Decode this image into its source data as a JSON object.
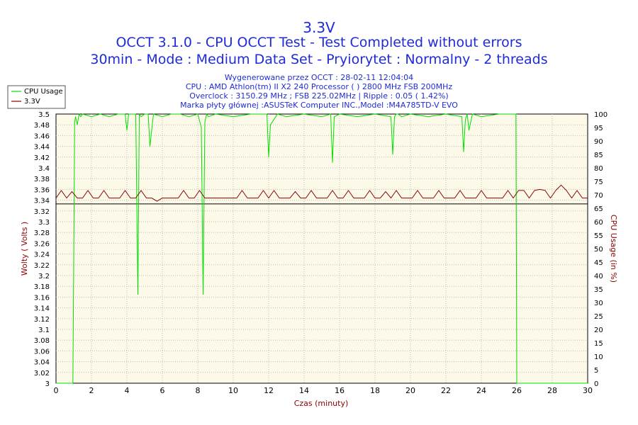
{
  "chart_data": {
    "type": "line",
    "title": "3.3V",
    "subtitle": [
      "OCCT 3.1.0 - CPU OCCT Test - Test Completed without errors",
      "30min - Mode : Medium Data Set - Pryiorytet : Normalny - 2 threads"
    ],
    "info_lines": [
      "Wygenerowane przez OCCT : 28-02-11 12:04:04",
      "CPU : AMD Athlon(tm) II X2 240 Processor (  ) 2800 MHz FSB 200MHz",
      "Overclock : 3150.29 MHz ; FSB 225.02MHz | Ripple : 0.05 ( 1.42%)",
      "Marka płyty głównej :ASUSTeK Computer INC.,Model :M4A785TD-V EVO"
    ],
    "xlabel": "Czas (minuty)",
    "ylabel": "Wolty ( Volts )",
    "y2label": "CPU Usage (in %)",
    "xlim": [
      0,
      30
    ],
    "ylim": [
      3.0,
      3.5
    ],
    "y2lim": [
      0,
      100
    ],
    "x_ticks": [
      "0",
      "2",
      "4",
      "6",
      "8",
      "10",
      "12",
      "14",
      "16",
      "18",
      "20",
      "22",
      "24",
      "26",
      "28",
      "30"
    ],
    "y_ticks": [
      "3",
      "3.02",
      "3.04",
      "3.06",
      "3.08",
      "3.1",
      "3.12",
      "3.14",
      "3.16",
      "3.18",
      "3.2",
      "3.22",
      "3.24",
      "3.26",
      "3.28",
      "3.3",
      "3.32",
      "3.34",
      "3.36",
      "3.38",
      "3.4",
      "3.42",
      "3.44",
      "3.46",
      "3.48",
      "3.5"
    ],
    "y2_ticks": [
      "0",
      "5",
      "10",
      "15",
      "20",
      "25",
      "30",
      "35",
      "40",
      "45",
      "50",
      "55",
      "60",
      "65",
      "70",
      "75",
      "80",
      "85",
      "90",
      "95",
      "100"
    ],
    "reference_line": 3.333,
    "legend": "top-left",
    "grid": true,
    "series": [
      {
        "name": "CPU Usage",
        "axis": "right",
        "color": "#00e000",
        "x": [
          0,
          0.95,
          1.0,
          1.05,
          1.1,
          1.2,
          1.3,
          1.4,
          1.5,
          2.0,
          2.5,
          3.0,
          3.5,
          3.9,
          4.0,
          4.1,
          4.5,
          4.62,
          4.7,
          4.8,
          5.0,
          5.2,
          5.3,
          5.5,
          6.0,
          6.5,
          7.0,
          7.5,
          8.0,
          8.2,
          8.3,
          8.4,
          8.5,
          8.6,
          9.0,
          10.0,
          11.0,
          11.9,
          12.0,
          12.1,
          12.5,
          13.0,
          14.0,
          15.0,
          15.5,
          15.6,
          15.7,
          16.0,
          17.0,
          18.0,
          18.9,
          19.0,
          19.1,
          19.2,
          19.3,
          19.5,
          20.0,
          21.0,
          22.0,
          22.9,
          23.0,
          23.1,
          23.2,
          23.3,
          23.5,
          24.0,
          25.0,
          25.95,
          26.0,
          26.05,
          27.0,
          30.0
        ],
        "y": [
          0,
          0,
          45,
          97,
          99,
          96,
          100,
          99,
          100,
          99,
          100,
          99,
          100,
          100,
          94,
          100,
          100,
          33,
          100,
          99,
          100,
          100,
          88,
          100,
          99,
          100,
          100,
          99,
          100,
          95,
          33,
          97,
          100,
          99,
          100,
          99,
          100,
          100,
          84,
          96,
          100,
          99,
          100,
          99,
          100,
          82,
          99,
          100,
          99,
          100,
          99,
          85,
          99,
          100,
          100,
          99,
          100,
          99,
          100,
          99,
          86,
          98,
          100,
          94,
          100,
          99,
          100,
          100,
          0,
          0,
          0,
          0
        ]
      },
      {
        "name": "3.3V",
        "axis": "left",
        "color": "#8b0000",
        "x": [
          0,
          0.3,
          0.6,
          0.9,
          1.2,
          1.5,
          1.8,
          2.1,
          2.4,
          2.7,
          3.0,
          3.3,
          3.6,
          3.9,
          4.2,
          4.5,
          4.8,
          5.1,
          5.4,
          5.7,
          6.0,
          6.3,
          6.6,
          6.9,
          7.2,
          7.5,
          7.8,
          8.1,
          8.4,
          8.7,
          9.0,
          9.3,
          9.6,
          9.9,
          10.2,
          10.5,
          10.8,
          11.1,
          11.4,
          11.7,
          12.0,
          12.3,
          12.6,
          12.9,
          13.2,
          13.5,
          13.8,
          14.1,
          14.4,
          14.7,
          15.0,
          15.3,
          15.6,
          15.9,
          16.2,
          16.5,
          16.8,
          17.1,
          17.4,
          17.7,
          18.0,
          18.3,
          18.6,
          18.9,
          19.2,
          19.5,
          19.8,
          20.1,
          20.4,
          20.7,
          21.0,
          21.3,
          21.6,
          21.9,
          22.2,
          22.5,
          22.8,
          23.1,
          23.4,
          23.7,
          24.0,
          24.3,
          24.6,
          24.9,
          25.2,
          25.5,
          25.8,
          26.1,
          26.4,
          26.7,
          27.0,
          27.3,
          27.6,
          27.9,
          28.2,
          28.5,
          28.8,
          29.1,
          29.4,
          29.7,
          30.0
        ],
        "y": [
          3.344,
          3.358,
          3.344,
          3.356,
          3.344,
          3.344,
          3.358,
          3.344,
          3.344,
          3.358,
          3.344,
          3.344,
          3.344,
          3.358,
          3.344,
          3.344,
          3.358,
          3.344,
          3.344,
          3.338,
          3.344,
          3.344,
          3.344,
          3.344,
          3.358,
          3.344,
          3.344,
          3.358,
          3.344,
          3.344,
          3.344,
          3.344,
          3.344,
          3.344,
          3.344,
          3.358,
          3.344,
          3.344,
          3.344,
          3.358,
          3.344,
          3.358,
          3.344,
          3.344,
          3.344,
          3.356,
          3.344,
          3.344,
          3.358,
          3.344,
          3.344,
          3.344,
          3.358,
          3.344,
          3.344,
          3.358,
          3.344,
          3.344,
          3.344,
          3.358,
          3.344,
          3.344,
          3.356,
          3.344,
          3.358,
          3.344,
          3.344,
          3.344,
          3.358,
          3.344,
          3.344,
          3.344,
          3.358,
          3.344,
          3.344,
          3.344,
          3.358,
          3.344,
          3.344,
          3.344,
          3.358,
          3.344,
          3.344,
          3.344,
          3.344,
          3.358,
          3.344,
          3.358,
          3.358,
          3.344,
          3.358,
          3.36,
          3.358,
          3.344,
          3.358,
          3.368,
          3.358,
          3.344,
          3.358,
          3.344,
          3.344
        ]
      }
    ]
  }
}
